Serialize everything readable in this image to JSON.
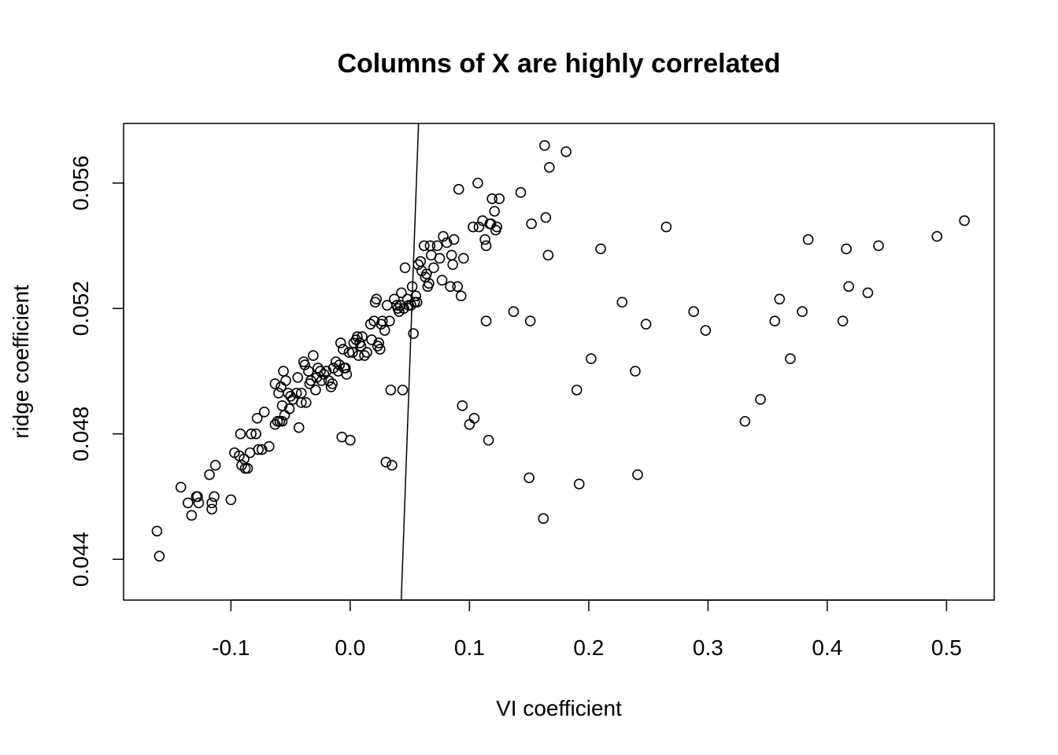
{
  "chart_data": {
    "type": "scatter",
    "title": "Columns of X are highly correlated",
    "xlabel": "VI coefficient",
    "ylabel": "ridge coefficient",
    "xlim": [
      -0.19,
      0.54
    ],
    "ylim": [
      0.0427,
      0.0579
    ],
    "x_ticks": [
      -0.1,
      0.0,
      0.1,
      0.2,
      0.3,
      0.4,
      0.5
    ],
    "x_tick_labels": [
      "-0.1",
      "0.0",
      "0.1",
      "0.2",
      "0.3",
      "0.4",
      "0.5"
    ],
    "y_ticks": [
      0.044,
      0.048,
      0.052,
      0.056
    ],
    "y_tick_labels": [
      "0.044",
      "0.048",
      "0.052",
      "0.056"
    ],
    "grid": false,
    "reference_line": {
      "x1": 0.0428,
      "y1": 0.0427,
      "x2": 0.0573,
      "y2": 0.0579
    },
    "points": [
      [
        -0.162,
        0.0449
      ],
      [
        -0.16,
        0.0441
      ],
      [
        -0.142,
        0.0463
      ],
      [
        -0.136,
        0.0458
      ],
      [
        -0.133,
        0.0454
      ],
      [
        -0.129,
        0.046
      ],
      [
        -0.128,
        0.046
      ],
      [
        -0.127,
        0.0458
      ],
      [
        -0.118,
        0.0467
      ],
      [
        -0.116,
        0.0456
      ],
      [
        -0.116,
        0.0458
      ],
      [
        -0.114,
        0.046
      ],
      [
        -0.113,
        0.047
      ],
      [
        -0.1,
        0.0459
      ],
      [
        -0.097,
        0.0474
      ],
      [
        -0.093,
        0.0473
      ],
      [
        -0.092,
        0.048
      ],
      [
        -0.091,
        0.047
      ],
      [
        -0.089,
        0.0472
      ],
      [
        -0.088,
        0.0469
      ],
      [
        -0.086,
        0.0469
      ],
      [
        -0.084,
        0.0474
      ],
      [
        -0.083,
        0.048
      ],
      [
        -0.079,
        0.048
      ],
      [
        -0.078,
        0.0485
      ],
      [
        -0.077,
        0.0475
      ],
      [
        -0.074,
        0.0475
      ],
      [
        -0.072,
        0.0487
      ],
      [
        -0.068,
        0.0476
      ],
      [
        -0.063,
        0.0483
      ],
      [
        -0.063,
        0.0496
      ],
      [
        -0.061,
        0.0484
      ],
      [
        -0.06,
        0.0493
      ],
      [
        -0.059,
        0.0484
      ],
      [
        -0.058,
        0.0495
      ],
      [
        -0.057,
        0.0489
      ],
      [
        -0.057,
        0.0484
      ],
      [
        -0.056,
        0.05
      ],
      [
        -0.055,
        0.0486
      ],
      [
        -0.054,
        0.0497
      ],
      [
        -0.052,
        0.0493
      ],
      [
        -0.051,
        0.0488
      ],
      [
        -0.05,
        0.0492
      ],
      [
        -0.048,
        0.0491
      ],
      [
        -0.045,
        0.0493
      ],
      [
        -0.044,
        0.0498
      ],
      [
        -0.043,
        0.0482
      ],
      [
        -0.041,
        0.0493
      ],
      [
        -0.041,
        0.049
      ],
      [
        -0.039,
        0.0503
      ],
      [
        -0.038,
        0.0502
      ],
      [
        -0.037,
        0.049
      ],
      [
        -0.035,
        0.05
      ],
      [
        -0.034,
        0.0496
      ],
      [
        -0.033,
        0.0497
      ],
      [
        -0.031,
        0.0505
      ],
      [
        -0.029,
        0.0494
      ],
      [
        -0.028,
        0.0498
      ],
      [
        -0.027,
        0.0501
      ],
      [
        -0.025,
        0.05
      ],
      [
        -0.024,
        0.0497
      ],
      [
        -0.022,
        0.0499
      ],
      [
        -0.02,
        0.05
      ],
      [
        -0.018,
        0.0497
      ],
      [
        -0.016,
        0.0495
      ],
      [
        -0.015,
        0.0496
      ],
      [
        -0.014,
        0.0501
      ],
      [
        -0.012,
        0.0503
      ],
      [
        -0.01,
        0.05
      ],
      [
        -0.009,
        0.0502
      ],
      [
        -0.008,
        0.0509
      ],
      [
        -0.007,
        0.0479
      ],
      [
        -0.006,
        0.0507
      ],
      [
        -0.005,
        0.0501
      ],
      [
        -0.004,
        0.0501
      ],
      [
        -0.003,
        0.0499
      ],
      [
        -0.001,
        0.0506
      ],
      [
        0.0,
        0.0478
      ],
      [
        0.002,
        0.0506
      ],
      [
        0.003,
        0.0509
      ],
      [
        0.005,
        0.051
      ],
      [
        0.006,
        0.0511
      ],
      [
        0.007,
        0.0505
      ],
      [
        0.008,
        0.0509
      ],
      [
        0.009,
        0.0508
      ],
      [
        0.01,
        0.0511
      ],
      [
        0.012,
        0.0505
      ],
      [
        0.014,
        0.0506
      ],
      [
        0.017,
        0.0515
      ],
      [
        0.018,
        0.051
      ],
      [
        0.02,
        0.0516
      ],
      [
        0.021,
        0.0522
      ],
      [
        0.022,
        0.0523
      ],
      [
        0.023,
        0.0508
      ],
      [
        0.024,
        0.0509
      ],
      [
        0.025,
        0.0507
      ],
      [
        0.026,
        0.0515
      ],
      [
        0.027,
        0.0516
      ],
      [
        0.029,
        0.0513
      ],
      [
        0.03,
        0.0471
      ],
      [
        0.031,
        0.0521
      ],
      [
        0.033,
        0.0516
      ],
      [
        0.034,
        0.0494
      ],
      [
        0.035,
        0.047
      ],
      [
        0.037,
        0.0523
      ],
      [
        0.039,
        0.0521
      ],
      [
        0.04,
        0.052
      ],
      [
        0.041,
        0.0519
      ],
      [
        0.042,
        0.0521
      ],
      [
        0.043,
        0.0525
      ],
      [
        0.044,
        0.0494
      ],
      [
        0.045,
        0.052
      ],
      [
        0.046,
        0.0533
      ],
      [
        0.048,
        0.0523
      ],
      [
        0.049,
        0.0521
      ],
      [
        0.051,
        0.0521
      ],
      [
        0.052,
        0.0527
      ],
      [
        0.053,
        0.0512
      ],
      [
        0.054,
        0.0522
      ],
      [
        0.055,
        0.0524
      ],
      [
        0.056,
        0.0522
      ],
      [
        0.057,
        0.0534
      ],
      [
        0.059,
        0.0535
      ],
      [
        0.06,
        0.0532
      ],
      [
        0.062,
        0.054
      ],
      [
        0.063,
        0.053
      ],
      [
        0.064,
        0.0531
      ],
      [
        0.065,
        0.0527
      ],
      [
        0.066,
        0.0528
      ],
      [
        0.067,
        0.054
      ],
      [
        0.068,
        0.0537
      ],
      [
        0.07,
        0.0533
      ],
      [
        0.073,
        0.054
      ],
      [
        0.075,
        0.0536
      ],
      [
        0.077,
        0.0529
      ],
      [
        0.078,
        0.0543
      ],
      [
        0.081,
        0.0541
      ],
      [
        0.084,
        0.0527
      ],
      [
        0.085,
        0.0537
      ],
      [
        0.086,
        0.0534
      ],
      [
        0.087,
        0.0542
      ],
      [
        0.09,
        0.0527
      ],
      [
        0.091,
        0.0558
      ],
      [
        0.093,
        0.0524
      ],
      [
        0.094,
        0.0489
      ],
      [
        0.095,
        0.0536
      ],
      [
        0.1,
        0.0483
      ],
      [
        0.103,
        0.0546
      ],
      [
        0.104,
        0.0485
      ],
      [
        0.107,
        0.056
      ],
      [
        0.108,
        0.0546
      ],
      [
        0.111,
        0.0548
      ],
      [
        0.113,
        0.0542
      ],
      [
        0.114,
        0.054
      ],
      [
        0.114,
        0.0516
      ],
      [
        0.116,
        0.0478
      ],
      [
        0.117,
        0.0547
      ],
      [
        0.118,
        0.0547
      ],
      [
        0.119,
        0.0555
      ],
      [
        0.121,
        0.0551
      ],
      [
        0.122,
        0.0545
      ],
      [
        0.123,
        0.0546
      ],
      [
        0.125,
        0.0555
      ],
      [
        0.137,
        0.0519
      ],
      [
        0.143,
        0.0557
      ],
      [
        0.15,
        0.0466
      ],
      [
        0.151,
        0.0516
      ],
      [
        0.152,
        0.0547
      ],
      [
        0.162,
        0.0453
      ],
      [
        0.163,
        0.0572
      ],
      [
        0.164,
        0.0549
      ],
      [
        0.166,
        0.0537
      ],
      [
        0.167,
        0.0565
      ],
      [
        0.181,
        0.057
      ],
      [
        0.19,
        0.0494
      ],
      [
        0.192,
        0.0464
      ],
      [
        0.202,
        0.0504
      ],
      [
        0.21,
        0.0539
      ],
      [
        0.228,
        0.0522
      ],
      [
        0.239,
        0.05
      ],
      [
        0.241,
        0.0467
      ],
      [
        0.248,
        0.0515
      ],
      [
        0.265,
        0.0546
      ],
      [
        0.288,
        0.0519
      ],
      [
        0.298,
        0.0513
      ],
      [
        0.331,
        0.0484
      ],
      [
        0.344,
        0.0491
      ],
      [
        0.356,
        0.0516
      ],
      [
        0.36,
        0.0523
      ],
      [
        0.369,
        0.0504
      ],
      [
        0.379,
        0.0519
      ],
      [
        0.384,
        0.0542
      ],
      [
        0.413,
        0.0516
      ],
      [
        0.416,
        0.0539
      ],
      [
        0.418,
        0.0527
      ],
      [
        0.434,
        0.0525
      ],
      [
        0.443,
        0.054
      ],
      [
        0.492,
        0.0543
      ],
      [
        0.515,
        0.0548
      ]
    ]
  }
}
